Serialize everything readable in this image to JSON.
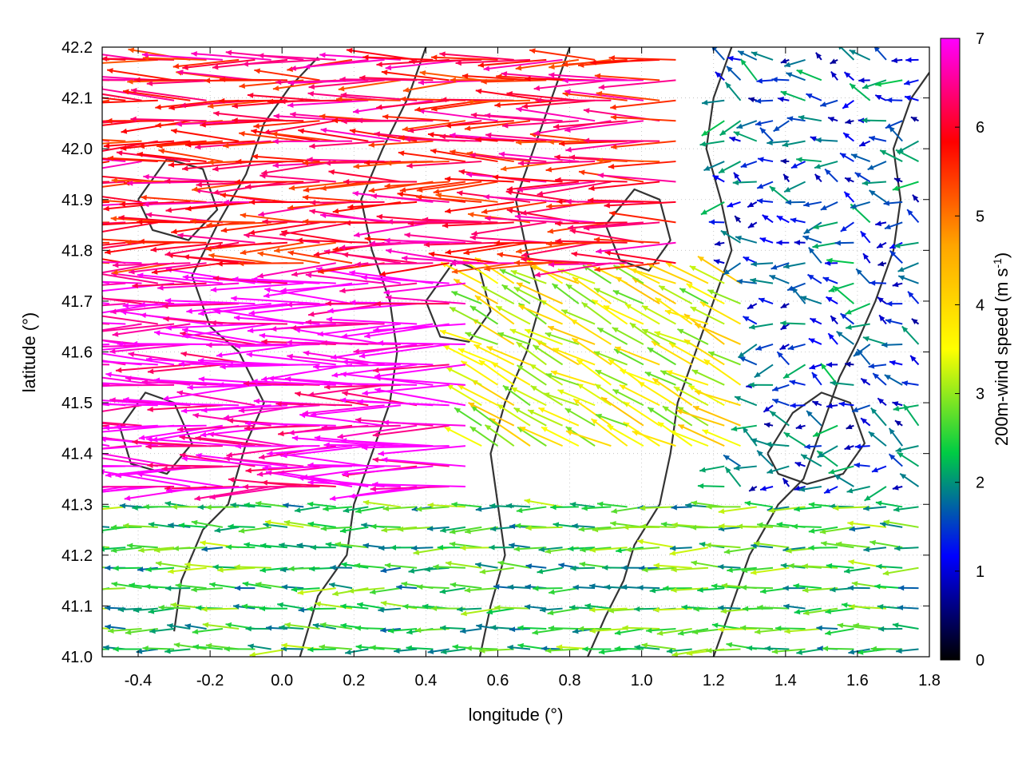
{
  "chart_data": {
    "type": "vector-field",
    "xlabel": "longitude (°)",
    "ylabel": "latitude (°)",
    "colorbar_label": "200m-wind speed (m s",
    "colorbar_label_sup": "-1",
    "colorbar_label_end": ")",
    "xlim": [
      -0.5,
      1.8
    ],
    "ylim": [
      41.0,
      42.2
    ],
    "xticks": [
      "-0.4",
      "-0.2",
      "0.0",
      "0.2",
      "0.4",
      "0.6",
      "0.8",
      "1.0",
      "1.2",
      "1.4",
      "1.6",
      "1.8"
    ],
    "xtick_values": [
      -0.4,
      -0.2,
      0.0,
      0.2,
      0.4,
      0.6,
      0.8,
      1.0,
      1.2,
      1.4,
      1.6,
      1.8
    ],
    "yticks": [
      "41.0",
      "41.1",
      "41.2",
      "41.3",
      "41.4",
      "41.5",
      "41.6",
      "41.7",
      "41.8",
      "41.9",
      "42.0",
      "42.1",
      "42.2"
    ],
    "ytick_values": [
      41.0,
      41.1,
      41.2,
      41.3,
      41.4,
      41.5,
      41.6,
      41.7,
      41.8,
      41.9,
      42.0,
      42.1,
      42.2
    ],
    "cbticks": [
      "0",
      "1",
      "2",
      "3",
      "4",
      "5",
      "6",
      "7"
    ],
    "cbtick_values": [
      0,
      1,
      2,
      3,
      4,
      5,
      6,
      7
    ],
    "color_range": [
      0,
      7
    ],
    "colormap": [
      "#000000",
      "#0000ff",
      "#00cc44",
      "#ffff00",
      "#ffa500",
      "#ff0000",
      "#ff00ff"
    ],
    "grid": true,
    "contour_color": "#333333",
    "wind_field_regions": [
      {
        "lon": [
          -0.5,
          0.55
        ],
        "lat": [
          41.3,
          41.75
        ],
        "speed_ms": 7.0,
        "direction": "westward"
      },
      {
        "lon": [
          -0.5,
          1.1
        ],
        "lat": [
          41.75,
          42.2
        ],
        "speed_ms": 6.0,
        "direction": "westward"
      },
      {
        "lon": [
          0.55,
          1.3
        ],
        "lat": [
          41.4,
          41.75
        ],
        "speed_ms": 3.5,
        "direction": "north-westward"
      },
      {
        "lon": [
          1.2,
          1.8
        ],
        "lat": [
          41.3,
          42.2
        ],
        "speed_ms": 1.5,
        "direction": "variable"
      },
      {
        "lon": [
          -0.5,
          1.8
        ],
        "lat": [
          41.0,
          41.3
        ],
        "speed_ms": 2.5,
        "direction": "westward"
      }
    ],
    "contours": [
      [
        [
          -0.3,
          41.05
        ],
        [
          -0.28,
          41.15
        ],
        [
          -0.22,
          41.25
        ],
        [
          -0.15,
          41.3
        ],
        [
          -0.1,
          41.42
        ],
        [
          -0.05,
          41.5
        ],
        [
          -0.12,
          41.6
        ],
        [
          -0.2,
          41.65
        ],
        [
          -0.25,
          41.75
        ],
        [
          -0.18,
          41.85
        ],
        [
          -0.1,
          41.95
        ],
        [
          -0.05,
          42.05
        ],
        [
          0.02,
          42.12
        ],
        [
          0.1,
          42.18
        ]
      ],
      [
        [
          0.05,
          41.0
        ],
        [
          0.1,
          41.12
        ],
        [
          0.18,
          41.2
        ],
        [
          0.2,
          41.3
        ],
        [
          0.25,
          41.4
        ],
        [
          0.3,
          41.5
        ],
        [
          0.32,
          41.6
        ],
        [
          0.3,
          41.7
        ],
        [
          0.25,
          41.8
        ],
        [
          0.22,
          41.9
        ],
        [
          0.28,
          42.0
        ],
        [
          0.35,
          42.1
        ],
        [
          0.4,
          42.2
        ]
      ],
      [
        [
          0.55,
          41.0
        ],
        [
          0.58,
          41.1
        ],
        [
          0.62,
          41.2
        ],
        [
          0.6,
          41.3
        ],
        [
          0.58,
          41.4
        ],
        [
          0.62,
          41.5
        ],
        [
          0.68,
          41.6
        ],
        [
          0.72,
          41.7
        ],
        [
          0.68,
          41.8
        ],
        [
          0.65,
          41.9
        ],
        [
          0.7,
          42.0
        ],
        [
          0.75,
          42.1
        ],
        [
          0.8,
          42.2
        ]
      ],
      [
        [
          0.85,
          41.0
        ],
        [
          0.9,
          41.08
        ],
        [
          0.95,
          41.15
        ],
        [
          0.98,
          41.22
        ],
        [
          1.05,
          41.3
        ],
        [
          1.08,
          41.4
        ],
        [
          1.1,
          41.5
        ],
        [
          1.15,
          41.6
        ],
        [
          1.2,
          41.7
        ],
        [
          1.25,
          41.8
        ],
        [
          1.22,
          41.9
        ],
        [
          1.18,
          42.0
        ],
        [
          1.2,
          42.1
        ],
        [
          1.25,
          42.2
        ]
      ],
      [
        [
          1.2,
          41.0
        ],
        [
          1.25,
          41.1
        ],
        [
          1.3,
          41.2
        ],
        [
          1.38,
          41.3
        ],
        [
          1.45,
          41.35
        ],
        [
          1.5,
          41.45
        ],
        [
          1.55,
          41.55
        ],
        [
          1.6,
          41.62
        ],
        [
          1.65,
          41.7
        ],
        [
          1.7,
          41.8
        ],
        [
          1.72,
          41.9
        ],
        [
          1.7,
          42.0
        ],
        [
          1.75,
          42.1
        ],
        [
          1.8,
          42.15
        ]
      ],
      [
        [
          1.35,
          41.4
        ],
        [
          1.42,
          41.48
        ],
        [
          1.5,
          41.52
        ],
        [
          1.58,
          41.5
        ],
        [
          1.62,
          41.42
        ],
        [
          1.56,
          41.36
        ],
        [
          1.46,
          41.34
        ],
        [
          1.38,
          41.36
        ],
        [
          1.35,
          41.4
        ]
      ],
      [
        [
          -0.45,
          41.45
        ],
        [
          -0.38,
          41.52
        ],
        [
          -0.3,
          41.5
        ],
        [
          -0.25,
          41.42
        ],
        [
          -0.32,
          41.36
        ],
        [
          -0.42,
          41.38
        ],
        [
          -0.45,
          41.45
        ]
      ],
      [
        [
          0.4,
          41.7
        ],
        [
          0.48,
          41.78
        ],
        [
          0.55,
          41.76
        ],
        [
          0.58,
          41.68
        ],
        [
          0.52,
          41.62
        ],
        [
          0.44,
          41.63
        ],
        [
          0.4,
          41.7
        ]
      ],
      [
        [
          0.9,
          41.85
        ],
        [
          0.98,
          41.92
        ],
        [
          1.05,
          41.9
        ],
        [
          1.08,
          41.82
        ],
        [
          1.02,
          41.76
        ],
        [
          0.94,
          41.78
        ],
        [
          0.9,
          41.85
        ]
      ],
      [
        [
          -0.4,
          41.9
        ],
        [
          -0.32,
          41.98
        ],
        [
          -0.22,
          41.96
        ],
        [
          -0.18,
          41.88
        ],
        [
          -0.26,
          41.82
        ],
        [
          -0.36,
          41.84
        ],
        [
          -0.4,
          41.9
        ]
      ]
    ]
  }
}
